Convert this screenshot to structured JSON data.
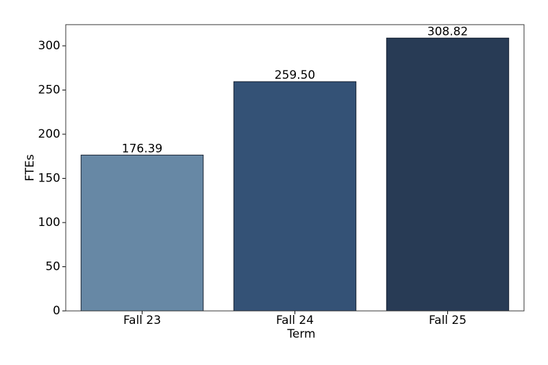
{
  "chart_data": {
    "type": "bar",
    "x_label": "Term",
    "y_label": "FTEs",
    "categories": [
      "Fall 23",
      "Fall 24",
      "Fall 25"
    ],
    "values": [
      176.39,
      259.5,
      308.82
    ],
    "value_labels": [
      "176.39",
      "259.50",
      "308.82"
    ],
    "colors": [
      "#6788a5",
      "#345276",
      "#283b55"
    ],
    "ylim": [
      0,
      324
    ],
    "yticks": [
      0,
      50,
      100,
      150,
      200,
      250,
      300
    ],
    "grid": false
  }
}
